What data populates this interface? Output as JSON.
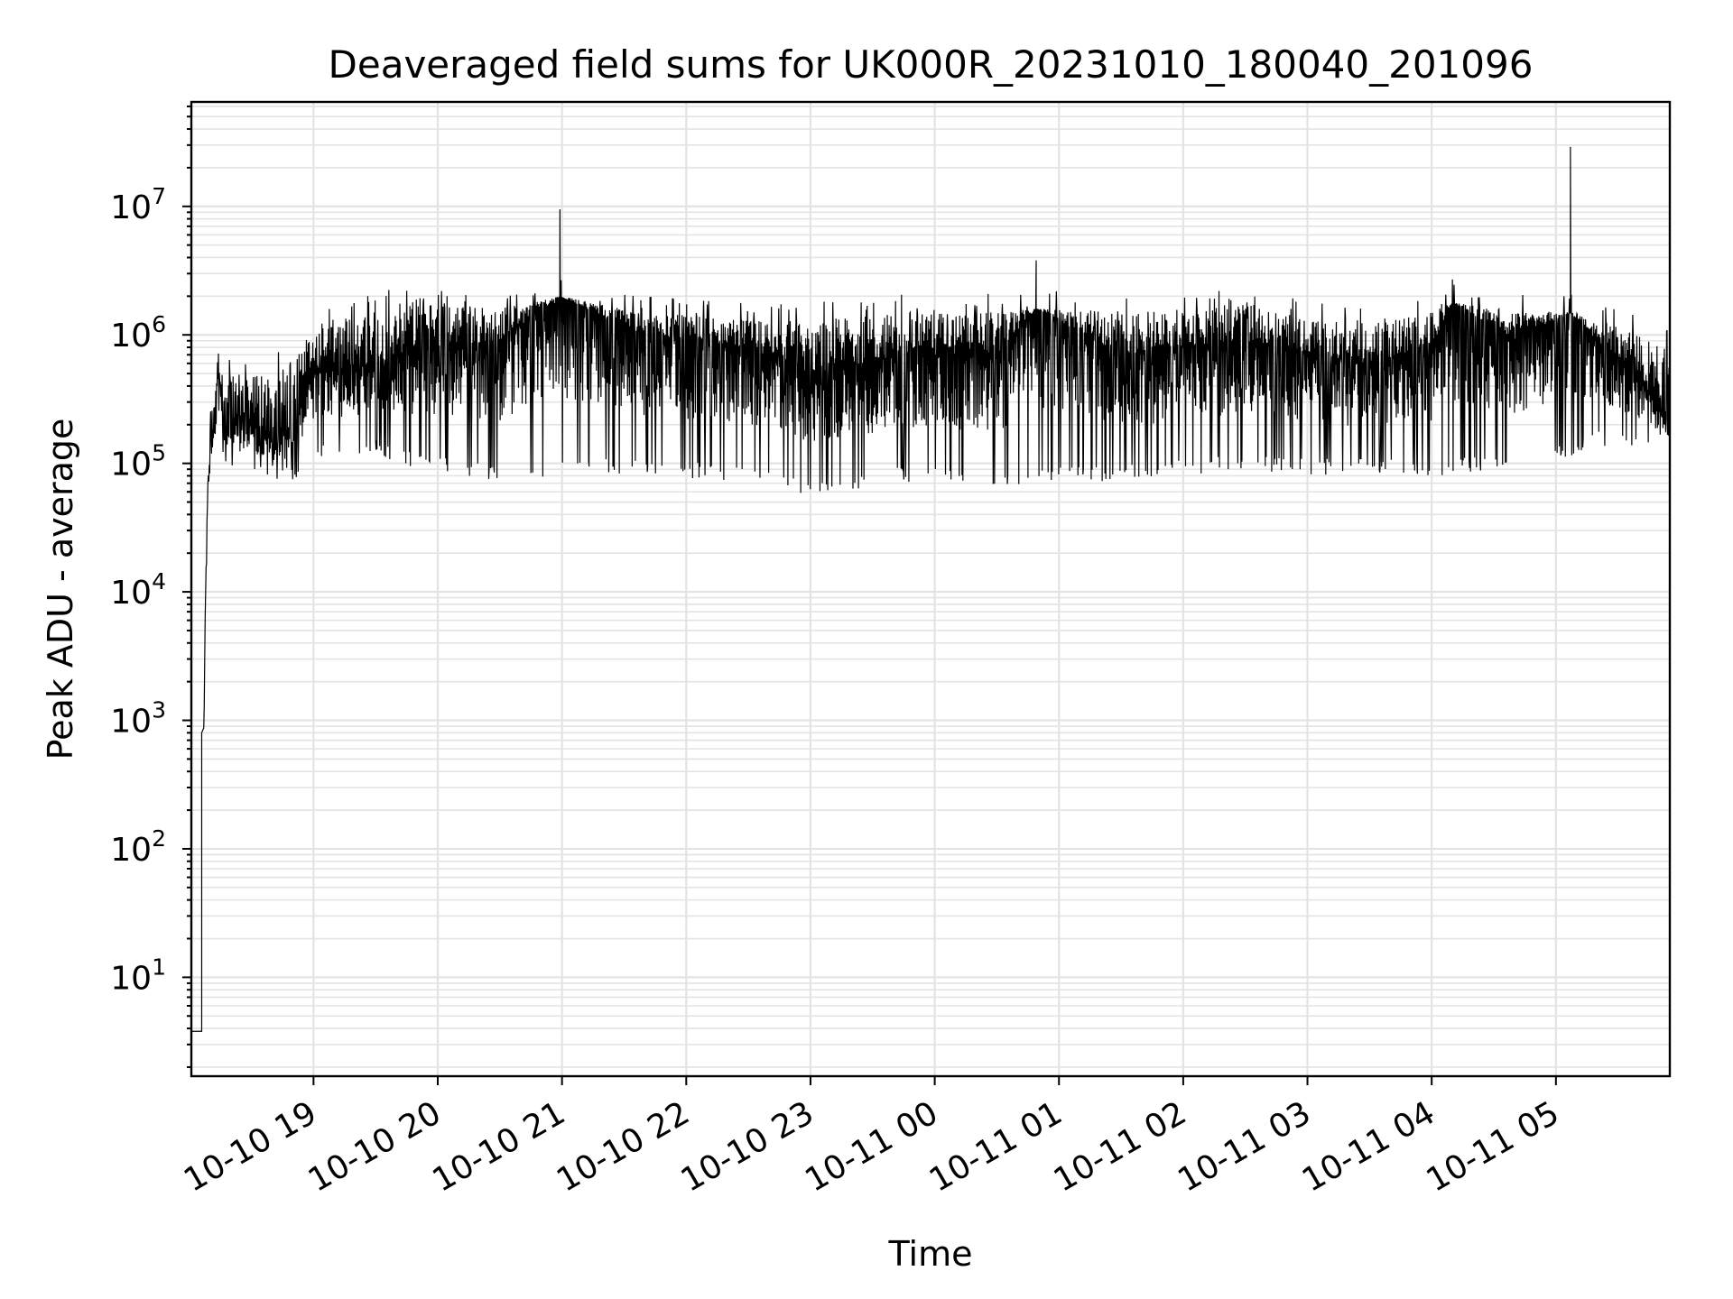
{
  "chart_data": {
    "type": "line",
    "title": "Deaveraged field sums for UK000R_20231010_180040_201096",
    "xlabel": "Time",
    "ylabel": "Peak ADU - average",
    "yscale": "log",
    "ylim": [
      1.7,
      65000000
    ],
    "xlim": [
      "2023-10-10 18:01",
      "2023-10-11 05:55"
    ],
    "grid": "on",
    "line_color": "#000000",
    "grid_color": "#e3e3e3",
    "x_tick_labels": [
      "10-10 19",
      "10-10 20",
      "10-10 21",
      "10-10 22",
      "10-10 23",
      "10-11 00",
      "10-11 01",
      "10-11 02",
      "10-11 03",
      "10-11 04",
      "10-11 05"
    ],
    "y_tick_labels": [
      {
        "base": "10",
        "exp": "1",
        "value": 10
      },
      {
        "base": "10",
        "exp": "2",
        "value": 100
      },
      {
        "base": "10",
        "exp": "3",
        "value": 1000
      },
      {
        "base": "10",
        "exp": "4",
        "value": 10000
      },
      {
        "base": "10",
        "exp": "5",
        "value": 100000
      },
      {
        "base": "10",
        "exp": "6",
        "value": 1000000
      },
      {
        "base": "10",
        "exp": "7",
        "value": 10000000
      }
    ],
    "series": [
      {
        "x": [
          "2023-10-10 18:01",
          "2023-10-10 18:06",
          "2023-10-10 18:07",
          "2023-10-10 18:08",
          "2023-10-10 18:09",
          "2023-10-10 18:10",
          "2023-10-10 18:12",
          "2023-10-10 18:14",
          "2023-10-10 18:16",
          "2023-10-10 18:18",
          "2023-10-10 18:20",
          "2023-10-10 18:25",
          "2023-10-10 18:30",
          "2023-10-10 18:40",
          "2023-10-10 18:50",
          "2023-10-10 19:00",
          "2023-10-10 19:30",
          "2023-10-10 19:50",
          "2023-10-10 20:30",
          "2023-10-10 20:59",
          "2023-10-10 21:40",
          "2023-10-10 22:30",
          "2023-10-10 23:00",
          "2023-10-10 23:45",
          "2023-10-11 00:30",
          "2023-10-11 00:49",
          "2023-10-11 01:30",
          "2023-10-11 02:00",
          "2023-10-11 02:30",
          "2023-10-11 03:00",
          "2023-10-11 03:30",
          "2023-10-11 04:00",
          "2023-10-11 04:10",
          "2023-10-11 04:40",
          "2023-10-11 05:07",
          "2023-10-11 05:20",
          "2023-10-11 05:40",
          "2023-10-11 05:55"
        ],
        "values": [
          3.8,
          3.8,
          800,
          12000,
          60000,
          100000,
          200000,
          600000,
          300000,
          200000,
          250000,
          180000,
          200000,
          150000,
          180000,
          500000,
          600000,
          800000,
          900000,
          9500000,
          1000000,
          800000,
          500000,
          700000,
          700000,
          3800000,
          700000,
          800000,
          900000,
          700000,
          600000,
          800000,
          2700000,
          900000,
          29000000,
          900000,
          500000,
          180000
        ],
        "envelope_high": [
          3.8,
          3.8,
          1000,
          30000,
          100000,
          200000,
          400000,
          1000000,
          500000,
          400000,
          500000,
          400000,
          500000,
          500000,
          600000,
          1200000,
          1600000,
          2000000,
          1600000,
          2000000,
          1500000,
          1300000,
          1300000,
          1500000,
          1500000,
          1600000,
          1500000,
          1600000,
          1800000,
          1300000,
          1300000,
          1500000,
          1800000,
          1500000,
          1500000,
          1300000,
          1000000,
          800000
        ],
        "envelope_low": [
          3.8,
          3.8,
          500,
          8000,
          40000,
          80000,
          100000,
          150000,
          120000,
          90000,
          100000,
          80000,
          90000,
          80000,
          80000,
          120000,
          130000,
          100000,
          80000,
          90000,
          90000,
          80000,
          60000,
          80000,
          70000,
          80000,
          80000,
          90000,
          100000,
          90000,
          90000,
          90000,
          90000,
          100000,
          120000,
          150000,
          130000,
          150000
        ]
      }
    ]
  }
}
